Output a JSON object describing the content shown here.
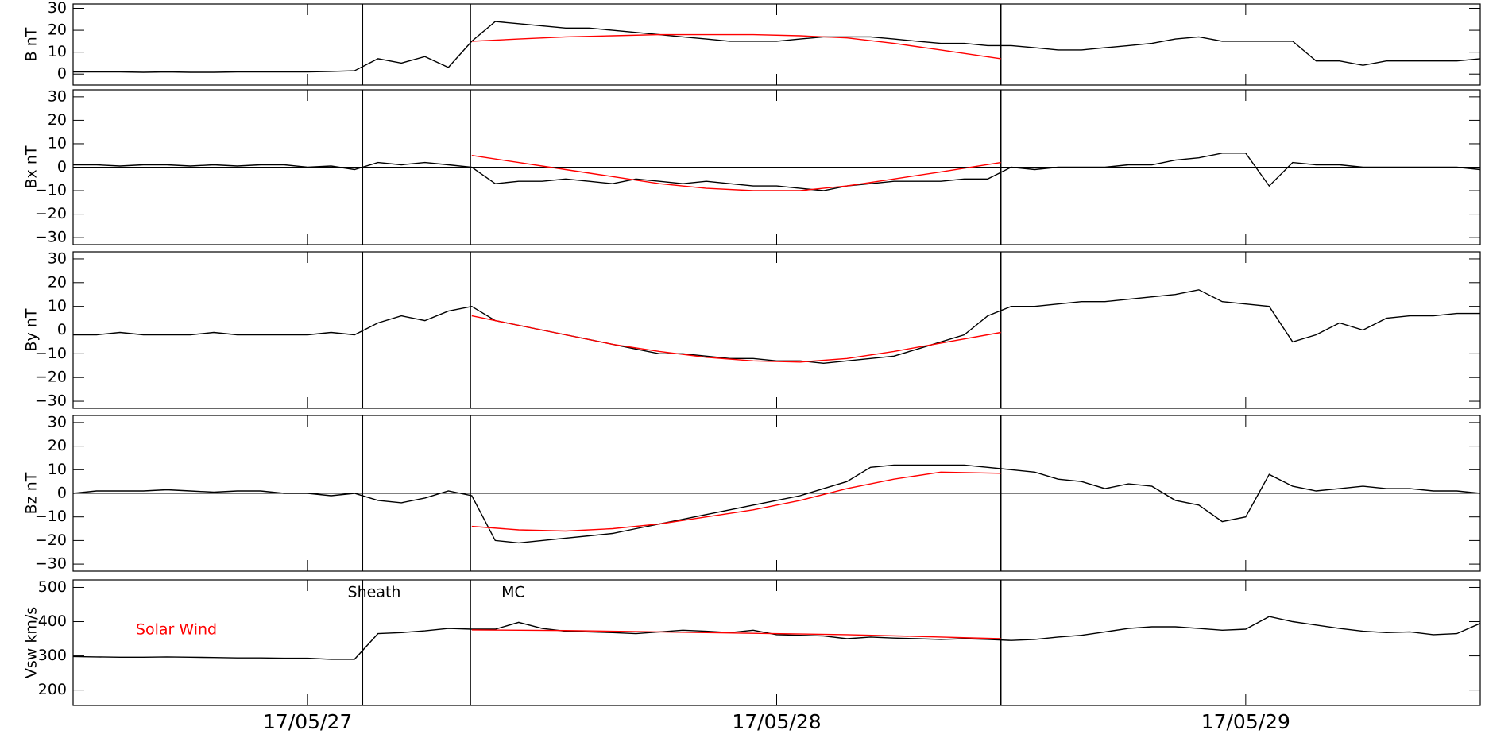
{
  "chart_data": [
    {
      "type": "line",
      "ylabel": "B nT",
      "xlim": [
        26.5,
        29.5
      ],
      "ylim": [
        -5,
        32
      ],
      "yticks": [
        0,
        10,
        20,
        30
      ],
      "xticks": [
        27,
        28,
        29
      ],
      "vlines": [
        27.117,
        27.347,
        28.478
      ],
      "zero_line": false,
      "x": [
        26.5,
        26.55,
        26.6,
        26.65,
        26.7,
        26.75,
        26.8,
        26.85,
        26.9,
        26.95,
        27.0,
        27.05,
        27.1,
        27.15,
        27.2,
        27.25,
        27.3,
        27.35,
        27.4,
        27.45,
        27.5,
        27.55,
        27.6,
        27.65,
        27.7,
        27.75,
        27.8,
        27.85,
        27.9,
        27.95,
        28.0,
        28.05,
        28.1,
        28.15,
        28.2,
        28.25,
        28.3,
        28.35,
        28.4,
        28.45,
        28.5,
        28.55,
        28.6,
        28.65,
        28.7,
        28.75,
        28.8,
        28.85,
        28.9,
        28.95,
        29.0,
        29.05,
        29.1,
        29.15,
        29.2,
        29.25,
        29.3,
        29.35,
        29.4,
        29.45,
        29.5
      ],
      "series": [
        {
          "color": "#000000",
          "values": [
            1,
            1,
            1,
            0.8,
            1,
            0.8,
            0.8,
            1,
            1,
            1,
            1,
            1.2,
            1.5,
            7,
            5,
            8,
            3,
            15,
            24,
            23,
            22,
            21,
            21,
            20,
            19,
            18,
            17,
            16,
            15,
            15,
            15,
            16,
            17,
            17,
            17,
            16,
            15,
            14,
            14,
            13,
            13,
            12,
            11,
            11,
            12,
            13,
            14,
            16,
            17,
            15,
            15,
            15,
            15,
            6,
            6,
            4,
            6,
            6,
            6,
            6,
            7
          ]
        },
        {
          "color": "#ff0000",
          "x": [
            27.35,
            27.45,
            27.55,
            27.65,
            27.75,
            27.85,
            27.95,
            28.05,
            28.15,
            28.25,
            28.35,
            28.478
          ],
          "values": [
            15,
            16,
            17,
            17.5,
            18,
            18,
            18,
            17.5,
            16.5,
            14,
            11,
            7
          ]
        }
      ]
    },
    {
      "type": "line",
      "ylabel": "Bx nT",
      "xlim": [
        26.5,
        29.5
      ],
      "ylim": [
        -33,
        33
      ],
      "yticks": [
        {
          "value": -30,
          "label": "−30"
        },
        {
          "value": -20,
          "label": "−20"
        },
        {
          "value": -10,
          "label": "−10"
        },
        0,
        10,
        20,
        30
      ],
      "xticks": [
        27,
        28,
        29
      ],
      "vlines": [
        27.117,
        27.347,
        28.478
      ],
      "zero_line": true,
      "x": [
        26.5,
        26.55,
        26.6,
        26.65,
        26.7,
        26.75,
        26.8,
        26.85,
        26.9,
        26.95,
        27.0,
        27.05,
        27.1,
        27.15,
        27.2,
        27.25,
        27.3,
        27.35,
        27.4,
        27.45,
        27.5,
        27.55,
        27.6,
        27.65,
        27.7,
        27.75,
        27.8,
        27.85,
        27.9,
        27.95,
        28.0,
        28.05,
        28.1,
        28.15,
        28.2,
        28.25,
        28.3,
        28.35,
        28.4,
        28.45,
        28.5,
        28.55,
        28.6,
        28.65,
        28.7,
        28.75,
        28.8,
        28.85,
        28.9,
        28.95,
        29.0,
        29.05,
        29.1,
        29.15,
        29.2,
        29.25,
        29.3,
        29.35,
        29.4,
        29.45,
        29.5
      ],
      "series": [
        {
          "color": "#000000",
          "values": [
            1,
            1,
            0.5,
            1,
            1,
            0.5,
            1,
            0.5,
            1,
            1,
            0,
            0.5,
            -1,
            2,
            1,
            2,
            1,
            0,
            -7,
            -6,
            -6,
            -5,
            -6,
            -7,
            -5,
            -6,
            -7,
            -6,
            -7,
            -8,
            -8,
            -9,
            -10,
            -8,
            -7,
            -6,
            -6,
            -6,
            -5,
            -5,
            0,
            -1,
            0,
            0,
            0,
            1,
            1,
            3,
            4,
            6,
            6,
            -8,
            2,
            1,
            1,
            0,
            0,
            0,
            0,
            0,
            -1
          ]
        },
        {
          "color": "#ff0000",
          "x": [
            27.35,
            27.45,
            27.55,
            27.65,
            27.75,
            27.85,
            27.95,
            28.05,
            28.15,
            28.25,
            28.35,
            28.478
          ],
          "values": [
            5,
            2,
            -1,
            -4,
            -7,
            -9,
            -10,
            -10,
            -8,
            -5,
            -2,
            2
          ]
        }
      ]
    },
    {
      "type": "line",
      "ylabel": "By nT",
      "xlim": [
        26.5,
        29.5
      ],
      "ylim": [
        -33,
        33
      ],
      "yticks": [
        {
          "value": -30,
          "label": "−30"
        },
        {
          "value": -20,
          "label": "−20"
        },
        {
          "value": -10,
          "label": "−10"
        },
        0,
        10,
        20,
        30
      ],
      "xticks": [
        27,
        28,
        29
      ],
      "vlines": [
        27.117,
        27.347,
        28.478
      ],
      "zero_line": true,
      "x": [
        26.5,
        26.55,
        26.6,
        26.65,
        26.7,
        26.75,
        26.8,
        26.85,
        26.9,
        26.95,
        27.0,
        27.05,
        27.1,
        27.15,
        27.2,
        27.25,
        27.3,
        27.35,
        27.4,
        27.45,
        27.5,
        27.55,
        27.6,
        27.65,
        27.7,
        27.75,
        27.8,
        27.85,
        27.9,
        27.95,
        28.0,
        28.05,
        28.1,
        28.15,
        28.2,
        28.25,
        28.3,
        28.35,
        28.4,
        28.45,
        28.5,
        28.55,
        28.6,
        28.65,
        28.7,
        28.75,
        28.8,
        28.85,
        28.9,
        28.95,
        29.0,
        29.05,
        29.1,
        29.15,
        29.2,
        29.25,
        29.3,
        29.35,
        29.4,
        29.45,
        29.5
      ],
      "series": [
        {
          "color": "#000000",
          "values": [
            -2,
            -2,
            -1,
            -2,
            -2,
            -2,
            -1,
            -2,
            -2,
            -2,
            -2,
            -1,
            -2,
            3,
            6,
            4,
            8,
            10,
            4,
            2,
            0,
            -2,
            -4,
            -6,
            -8,
            -10,
            -10,
            -11,
            -12,
            -12,
            -13,
            -13,
            -14,
            -13,
            -12,
            -11,
            -8,
            -5,
            -2,
            6,
            10,
            10,
            11,
            12,
            12,
            13,
            14,
            15,
            17,
            12,
            11,
            10,
            -5,
            -2,
            3,
            0,
            5,
            6,
            6,
            7,
            7
          ]
        },
        {
          "color": "#ff0000",
          "x": [
            27.35,
            27.45,
            27.55,
            27.65,
            27.75,
            27.85,
            27.95,
            28.05,
            28.15,
            28.25,
            28.35,
            28.478
          ],
          "values": [
            6,
            2,
            -2,
            -6,
            -9,
            -11.5,
            -13,
            -13.5,
            -12,
            -9,
            -5.5,
            -1
          ]
        }
      ]
    },
    {
      "type": "line",
      "ylabel": "Bz nT",
      "xlim": [
        26.5,
        29.5
      ],
      "ylim": [
        -33,
        33
      ],
      "yticks": [
        {
          "value": -30,
          "label": "−30"
        },
        {
          "value": -20,
          "label": "−20"
        },
        {
          "value": -10,
          "label": "−10"
        },
        0,
        10,
        20,
        30
      ],
      "xticks": [
        27,
        28,
        29
      ],
      "vlines": [
        27.117,
        27.347,
        28.478
      ],
      "zero_line": true,
      "x": [
        26.5,
        26.55,
        26.6,
        26.65,
        26.7,
        26.75,
        26.8,
        26.85,
        26.9,
        26.95,
        27.0,
        27.05,
        27.1,
        27.15,
        27.2,
        27.25,
        27.3,
        27.35,
        27.4,
        27.45,
        27.5,
        27.55,
        27.6,
        27.65,
        27.7,
        27.75,
        27.8,
        27.85,
        27.9,
        27.95,
        28.0,
        28.05,
        28.1,
        28.15,
        28.2,
        28.25,
        28.3,
        28.35,
        28.4,
        28.45,
        28.5,
        28.55,
        28.6,
        28.65,
        28.7,
        28.75,
        28.8,
        28.85,
        28.9,
        28.95,
        29.0,
        29.05,
        29.1,
        29.15,
        29.2,
        29.25,
        29.3,
        29.35,
        29.4,
        29.45,
        29.5
      ],
      "series": [
        {
          "color": "#000000",
          "values": [
            0,
            1,
            1,
            1,
            1.5,
            1,
            0.5,
            1,
            1,
            0,
            0,
            -1,
            0,
            -3,
            -4,
            -2,
            1,
            -1,
            -20,
            -21,
            -20,
            -19,
            -18,
            -17,
            -15,
            -13,
            -11,
            -9,
            -7,
            -5,
            -3,
            -1,
            2,
            5,
            11,
            12,
            12,
            12,
            12,
            11,
            10,
            9,
            6,
            5,
            2,
            4,
            3,
            -3,
            -5,
            -12,
            -10,
            8,
            3,
            1,
            2,
            3,
            2,
            2,
            1,
            1,
            0
          ]
        },
        {
          "color": "#ff0000",
          "x": [
            27.35,
            27.45,
            27.55,
            27.65,
            27.75,
            27.85,
            27.95,
            28.05,
            28.15,
            28.25,
            28.35,
            28.478
          ],
          "values": [
            -14,
            -15.5,
            -16,
            -15,
            -13,
            -10,
            -7,
            -3,
            2,
            6,
            9,
            8.5
          ]
        }
      ]
    },
    {
      "type": "line",
      "ylabel": "Vsw km/s",
      "xlim": [
        26.5,
        29.5
      ],
      "ylim": [
        155,
        522
      ],
      "yticks": [
        200,
        300,
        400,
        500
      ],
      "xticks": [
        {
          "value": 27,
          "label": "17/05/27"
        },
        {
          "value": 28,
          "label": "17/05/28"
        },
        {
          "value": 29,
          "label": "17/05/29"
        }
      ],
      "vlines": [
        27.117,
        27.347,
        28.478
      ],
      "zero_line": false,
      "annotations": [
        {
          "text": "Sheath",
          "color": "#000000"
        },
        {
          "text": "MC",
          "color": "#000000"
        },
        {
          "text": "Solar Wind",
          "color": "#ff0000"
        }
      ],
      "x": [
        26.5,
        26.55,
        26.6,
        26.65,
        26.7,
        26.75,
        26.8,
        26.85,
        26.9,
        26.95,
        27.0,
        27.05,
        27.1,
        27.15,
        27.2,
        27.25,
        27.3,
        27.35,
        27.4,
        27.45,
        27.5,
        27.55,
        27.6,
        27.65,
        27.7,
        27.75,
        27.8,
        27.85,
        27.9,
        27.95,
        28.0,
        28.05,
        28.1,
        28.15,
        28.2,
        28.25,
        28.3,
        28.35,
        28.4,
        28.45,
        28.5,
        28.55,
        28.6,
        28.65,
        28.7,
        28.75,
        28.8,
        28.85,
        28.9,
        28.95,
        29.0,
        29.05,
        29.1,
        29.15,
        29.2,
        29.25,
        29.3,
        29.35,
        29.4,
        29.45,
        29.5
      ],
      "series": [
        {
          "color": "#000000",
          "values": [
            298,
            297,
            296,
            296,
            297,
            296,
            295,
            294,
            294,
            293,
            293,
            290,
            290,
            365,
            368,
            373,
            380,
            378,
            378,
            398,
            380,
            372,
            370,
            368,
            365,
            370,
            375,
            372,
            368,
            375,
            362,
            360,
            358,
            350,
            355,
            352,
            350,
            348,
            350,
            348,
            345,
            348,
            355,
            360,
            370,
            380,
            385,
            385,
            380,
            375,
            378,
            415,
            400,
            390,
            380,
            372,
            368,
            370,
            362,
            365,
            395
          ]
        },
        {
          "color": "#ff0000",
          "x": [
            27.35,
            27.55,
            27.75,
            27.95,
            28.15,
            28.35,
            28.478
          ],
          "values": [
            376,
            374,
            370,
            366,
            362,
            355,
            350
          ]
        }
      ]
    }
  ]
}
